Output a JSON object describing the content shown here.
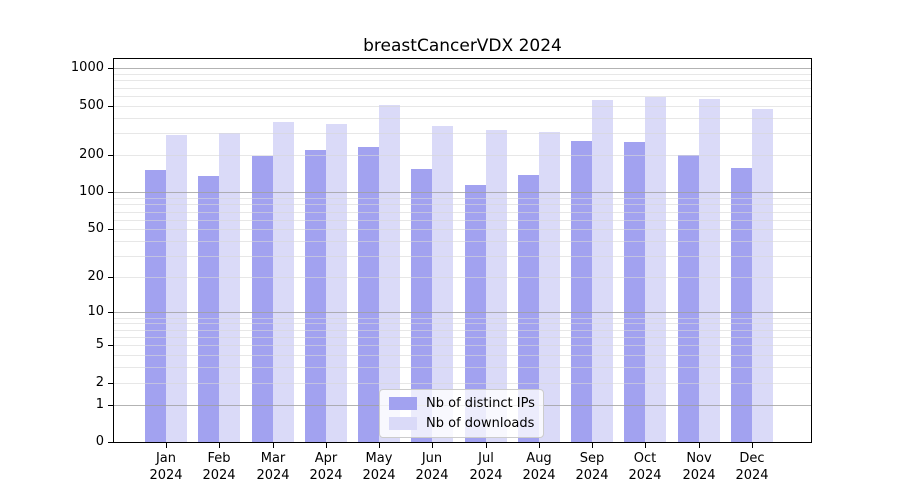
{
  "chart_data": {
    "type": "bar",
    "title": "breastCancerVDX 2024",
    "categories": [
      "Jan",
      "Feb",
      "Mar",
      "Apr",
      "May",
      "Jun",
      "Jul",
      "Aug",
      "Sep",
      "Oct",
      "Nov",
      "Dec"
    ],
    "x_year": "2024",
    "series": [
      {
        "name": "Nb of distinct IPs",
        "color": "#a2a2f0",
        "values": [
          152,
          136,
          197,
          221,
          233,
          155,
          115,
          139,
          261,
          256,
          201,
          158
        ]
      },
      {
        "name": "Nb of downloads",
        "color": "#dadaf8",
        "values": [
          291,
          302,
          371,
          357,
          508,
          344,
          320,
          308,
          558,
          589,
          568,
          472
        ]
      }
    ],
    "yscale": "log1p (log10 of value+1), linear-at-zero",
    "ylim": [
      0,
      1220
    ],
    "y_tick_values": [
      0,
      1,
      2,
      5,
      10,
      20,
      50,
      100,
      200,
      500,
      1000
    ],
    "y_tick_labels": [
      "0",
      "1",
      "2",
      "5",
      "10",
      "20",
      "50",
      "100",
      "200",
      "500",
      "1000"
    ],
    "xlabel": "",
    "ylabel": "",
    "grid": "horizontal major+minor, drawn over bars",
    "legend_position": "lower center"
  }
}
